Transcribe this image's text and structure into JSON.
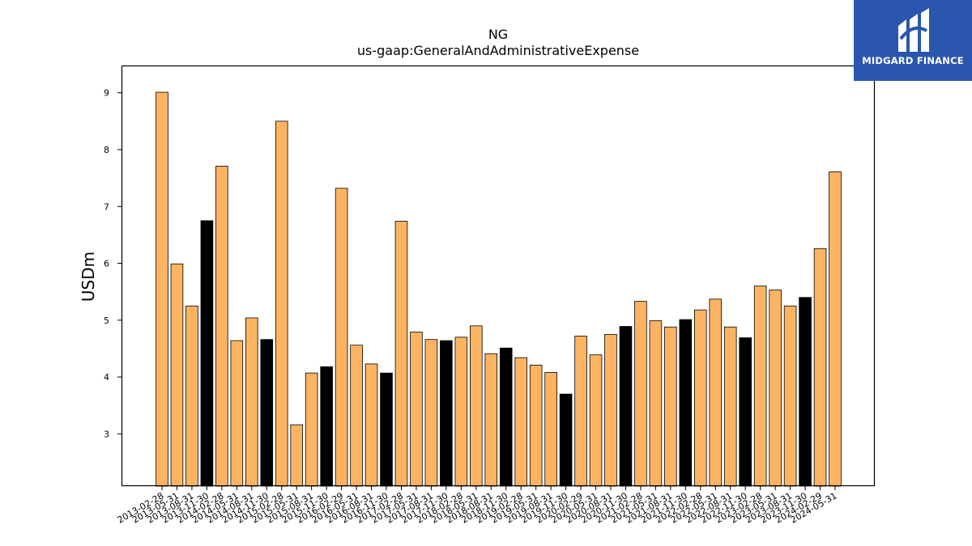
{
  "brand": {
    "name": "MIDGARD FINANCE",
    "color": "#2b56ad"
  },
  "chart_data": {
    "type": "bar",
    "title": "NG",
    "subtitle": "us-gaap:GeneralAndAdministrativeExpense",
    "ylabel": "USDm",
    "xlabel": "",
    "ylim": [
      2.08,
      9.48
    ],
    "yticks": [
      3,
      4,
      5,
      6,
      7,
      8,
      9
    ],
    "grid": false,
    "colors": {
      "default": "#fdb462",
      "highlight": "#000000",
      "edge": "#000000"
    },
    "categories": [
      "2013-02-28",
      "2013-05-31",
      "2013-08-31",
      "2013-11-30",
      "2014-02-28",
      "2014-05-31",
      "2014-08-31",
      "2014-11-30",
      "2015-02-28",
      "2015-05-31",
      "2015-08-31",
      "2015-11-30",
      "2016-02-29",
      "2016-05-31",
      "2016-08-31",
      "2016-11-30",
      "2017-02-28",
      "2017-05-31",
      "2017-08-31",
      "2017-11-30",
      "2018-02-28",
      "2018-05-31",
      "2018-08-31",
      "2018-11-30",
      "2019-02-28",
      "2019-05-31",
      "2019-08-31",
      "2019-11-30",
      "2020-02-29",
      "2020-05-31",
      "2020-08-31",
      "2020-11-30",
      "2021-02-28",
      "2021-05-31",
      "2021-08-31",
      "2021-11-30",
      "2022-02-28",
      "2022-05-31",
      "2022-08-31",
      "2022-11-30",
      "2023-02-28",
      "2023-05-31",
      "2023-08-31",
      "2023-11-30",
      "2024-02-29",
      "2024-05-31"
    ],
    "values": [
      9.01,
      5.99,
      5.25,
      6.75,
      7.71,
      4.64,
      5.04,
      4.66,
      8.5,
      3.16,
      4.07,
      4.18,
      7.32,
      4.56,
      4.23,
      4.07,
      6.74,
      4.79,
      4.66,
      4.64,
      4.7,
      4.9,
      4.41,
      4.51,
      4.34,
      4.21,
      4.08,
      3.7,
      4.72,
      4.39,
      4.75,
      4.89,
      5.33,
      4.99,
      4.88,
      5.01,
      5.18,
      5.37,
      4.88,
      4.69,
      5.6,
      5.53,
      5.25,
      5.4,
      6.26,
      7.61
    ],
    "highlighted": [
      false,
      false,
      false,
      true,
      false,
      false,
      false,
      true,
      false,
      false,
      false,
      true,
      false,
      false,
      false,
      true,
      false,
      false,
      false,
      true,
      false,
      false,
      false,
      true,
      false,
      false,
      false,
      true,
      false,
      false,
      false,
      true,
      false,
      false,
      false,
      true,
      false,
      false,
      false,
      true,
      false,
      false,
      false,
      true,
      false,
      false
    ]
  }
}
